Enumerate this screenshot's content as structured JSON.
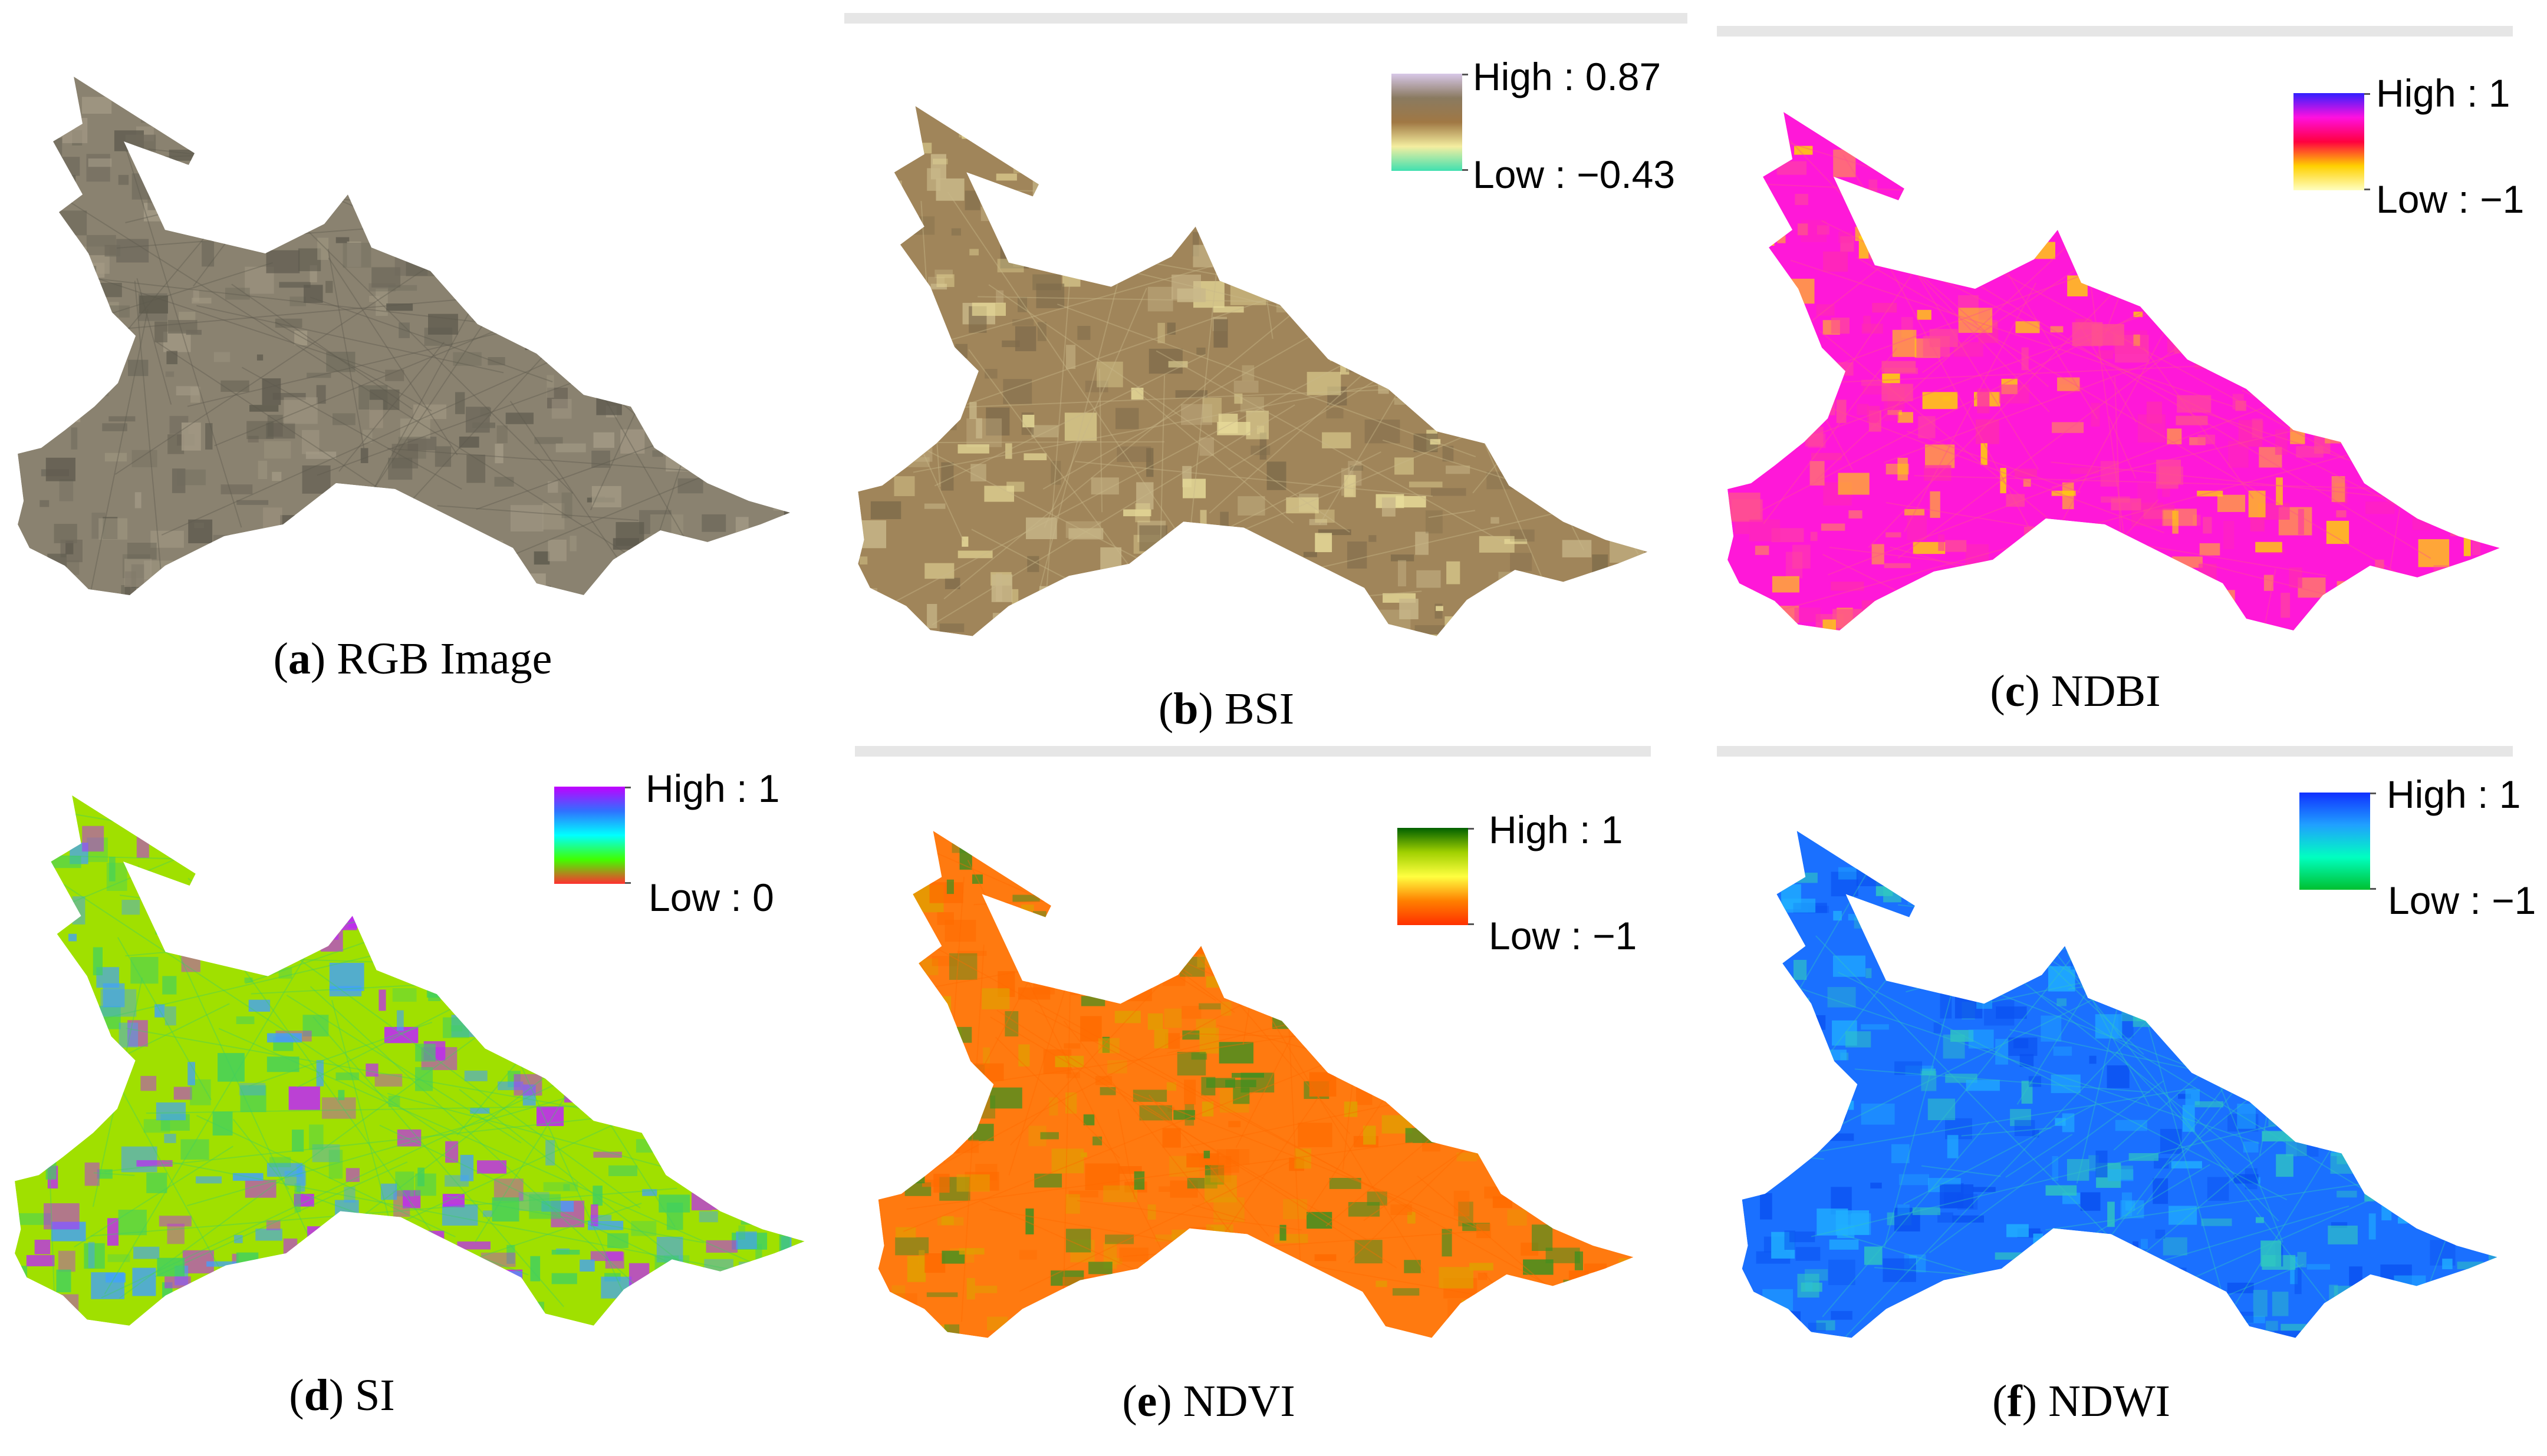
{
  "panels": [
    {
      "id": "a",
      "letter": "a",
      "title": "RGB Image",
      "colors": [
        "#8a8270",
        "#6f6a5c",
        "#a39a85",
        "#5e5a4e"
      ],
      "legend": null
    },
    {
      "id": "b",
      "letter": "b",
      "title": "BSI",
      "colors": [
        "#a0855a",
        "#e8dc9a",
        "#7d6a4a",
        "#c9b88a"
      ],
      "legend": {
        "high": "High : 0.87",
        "low": "Low : −0.43",
        "gradient": [
          "#d8c8e8",
          "#8a7a60",
          "#a07844",
          "#f4eea0",
          "#40e0b0"
        ]
      }
    },
    {
      "id": "c",
      "letter": "c",
      "title": "NDBI",
      "colors": [
        "#ff18d8",
        "#ffd800",
        "#ff2cb0",
        "#ff5090"
      ],
      "legend": {
        "high": "High : 1",
        "low": "Low : −1",
        "gradient": [
          "#3020ff",
          "#ff10e0",
          "#ff0040",
          "#ffd000",
          "#ffffc0"
        ]
      }
    },
    {
      "id": "d",
      "letter": "d",
      "title": "SI",
      "colors": [
        "#a0e000",
        "#40a0ff",
        "#c020ff",
        "#40d060"
      ],
      "legend": {
        "high": "High : 1",
        "low": "Low : 0",
        "gradient": [
          "#c000ff",
          "#3070ff",
          "#00ffff",
          "#40ff00",
          "#ff3030"
        ]
      }
    },
    {
      "id": "e",
      "letter": "e",
      "title": "NDVI",
      "colors": [
        "#ff7a10",
        "#e0a000",
        "#3a9020",
        "#ff6a00"
      ],
      "legend": {
        "high": "High : 1",
        "low": "Low : −1",
        "gradient": [
          "#006000",
          "#a0d000",
          "#ffff40",
          "#ff8000",
          "#ff3000"
        ]
      }
    },
    {
      "id": "f",
      "letter": "f",
      "title": "NDWI",
      "colors": [
        "#1a70ff",
        "#20b0ff",
        "#0a50f0",
        "#30c8c0"
      ],
      "legend": {
        "high": "High : 1",
        "low": "Low : −1",
        "gradient": [
          "#1030ff",
          "#20a0ff",
          "#00ffc0",
          "#00c030"
        ]
      }
    }
  ]
}
